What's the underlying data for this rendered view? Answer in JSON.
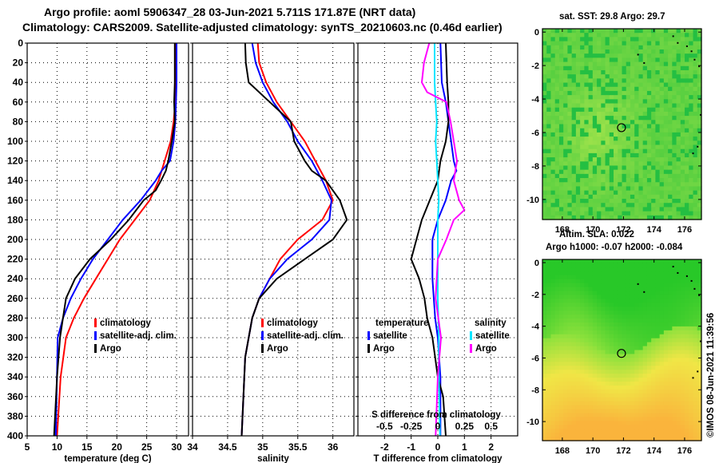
{
  "header": {
    "line1": "Argo profile: aoml 5906347_28 03-Jun-2021 5.711S 171.87E (NRT data)",
    "line2": "Climatology: CARS2009. Satellite-adjusted climatology: synTS_20210603.nc (0.46d earlier)"
  },
  "side_stamp": "©IMOS 08-Jun-2021 11:39:56",
  "colors": {
    "clim": "#ff0000",
    "sat": "#0000ff",
    "argo": "#000000",
    "sat_sal": "#00e5ff",
    "argo_sal": "#ff00ff"
  },
  "chart_data": [
    {
      "type": "line",
      "name": "temperature-panel",
      "xlabel": "temperature (deg C)",
      "ylabel": "",
      "xlim": [
        5,
        32
      ],
      "ylim": [
        400,
        0
      ],
      "xticks": [
        "5",
        "10",
        "15",
        "20",
        "25",
        "30"
      ],
      "yticks": [
        "0",
        "20",
        "40",
        "60",
        "80",
        "100",
        "120",
        "140",
        "160",
        "180",
        "200",
        "220",
        "240",
        "260",
        "280",
        "300",
        "320",
        "340",
        "360",
        "380",
        "400"
      ],
      "legend": [
        "climatology",
        "satellite-adj. clim.",
        "Argo"
      ],
      "series": [
        {
          "name": "climatology",
          "color": "#ff0000",
          "x": [
            29.9,
            29.85,
            29.8,
            29.5,
            29.0,
            28.0,
            27.0,
            25.5,
            23.0,
            20.5,
            18.5,
            16.5,
            14.5,
            12.8,
            11.5,
            10.6,
            10.0
          ],
          "y": [
            0,
            40,
            60,
            80,
            100,
            120,
            140,
            160,
            180,
            200,
            220,
            240,
            260,
            280,
            300,
            340,
            400
          ]
        },
        {
          "name": "satellite-adj. clim.",
          "color": "#0000ff",
          "x": [
            30.0,
            30.0,
            29.9,
            29.8,
            29.5,
            28.9,
            27.5,
            26.5,
            24.0,
            21.0,
            18.5,
            16.0,
            14.0,
            12.3,
            11.0,
            10.1,
            9.8
          ],
          "y": [
            0,
            40,
            60,
            80,
            100,
            120,
            130,
            140,
            160,
            180,
            200,
            220,
            240,
            260,
            280,
            300,
            400
          ]
        },
        {
          "name": "Argo",
          "color": "#000000",
          "x": [
            29.7,
            29.7,
            29.6,
            29.7,
            29.2,
            28.6,
            28.2,
            27.4,
            26.5,
            24.5,
            22.0,
            19.0,
            15.5,
            13.0,
            11.5,
            10.5,
            10.0,
            9.5
          ],
          "y": [
            0,
            40,
            60,
            80,
            100,
            120,
            130,
            140,
            150,
            160,
            180,
            200,
            220,
            240,
            260,
            300,
            340,
            400
          ]
        }
      ]
    },
    {
      "type": "line",
      "name": "salinity-panel",
      "xlabel": "salinity",
      "xlim": [
        34,
        36.3
      ],
      "ylim": [
        400,
        0
      ],
      "xticks": [
        "34",
        "34.5",
        "35",
        "35.5",
        "36"
      ],
      "legend": [
        "climatology",
        "satellite-adj. clim.",
        "Argo"
      ],
      "series": [
        {
          "name": "climatology",
          "color": "#ff0000",
          "x": [
            34.93,
            34.95,
            35.05,
            35.2,
            35.4,
            35.6,
            35.75,
            35.9,
            36.0,
            35.85,
            35.5,
            35.25,
            35.1,
            34.95,
            34.85,
            34.75,
            34.7
          ],
          "y": [
            0,
            20,
            40,
            60,
            80,
            100,
            120,
            140,
            160,
            180,
            200,
            220,
            240,
            260,
            280,
            320,
            400
          ]
        },
        {
          "name": "satellite-adj. clim.",
          "color": "#0000ff",
          "x": [
            34.85,
            34.9,
            35.0,
            35.15,
            35.35,
            35.5,
            35.7,
            35.85,
            35.98,
            35.95,
            35.7,
            35.35,
            35.1,
            34.95,
            34.85,
            34.75,
            34.7
          ],
          "y": [
            0,
            20,
            40,
            60,
            80,
            100,
            120,
            140,
            160,
            180,
            200,
            220,
            240,
            260,
            280,
            320,
            400
          ]
        },
        {
          "name": "Argo",
          "color": "#000000",
          "x": [
            34.75,
            34.76,
            34.8,
            35.1,
            35.4,
            35.45,
            35.6,
            35.7,
            35.9,
            36.1,
            36.2,
            36.0,
            35.6,
            35.2,
            34.95,
            34.85,
            34.75,
            34.7
          ],
          "y": [
            0,
            20,
            40,
            60,
            80,
            100,
            120,
            130,
            140,
            160,
            180,
            200,
            220,
            240,
            260,
            280,
            320,
            400
          ]
        }
      ]
    },
    {
      "type": "line",
      "name": "difference-panel",
      "xlabel": "T difference from climatology",
      "xlabel2": "S difference from climatology",
      "xlim": [
        -3,
        3
      ],
      "ylim": [
        400,
        0
      ],
      "xticks": [
        "-2",
        "-1",
        "0",
        "1",
        "2"
      ],
      "xticks2": [
        "-0.5",
        "-0.25",
        "0",
        "0.25",
        "0.5"
      ],
      "legend_groups": [
        "temperature",
        "salinity"
      ],
      "legend": [
        "satellite",
        "Argo",
        "satellite",
        "Argo"
      ],
      "series": [
        {
          "name": "temperature satellite",
          "color": "#0000ff",
          "x": [
            0.1,
            0.15,
            0.3,
            0.4,
            0.5,
            0.6,
            0.7,
            0.5,
            0.3,
            0.0,
            -0.2,
            -0.2,
            -0.1,
            0.0,
            0.1,
            0.1,
            0.1
          ],
          "y": [
            0,
            40,
            60,
            80,
            100,
            120,
            130,
            140,
            160,
            180,
            200,
            240,
            280,
            300,
            340,
            360,
            400
          ]
        },
        {
          "name": "temperature Argo",
          "color": "#000000",
          "x": [
            0.3,
            0.35,
            0.4,
            0.4,
            0.3,
            0.1,
            0.0,
            -0.3,
            -0.6,
            -0.8,
            -1.0,
            -0.7,
            -0.5,
            -0.4,
            -0.2,
            -0.1,
            0.0,
            0.2,
            0.3
          ],
          "y": [
            0,
            40,
            60,
            80,
            100,
            120,
            140,
            160,
            180,
            200,
            220,
            240,
            260,
            280,
            300,
            320,
            340,
            360,
            400
          ]
        },
        {
          "name": "salinity satellite",
          "color": "#00e5ff",
          "x": [
            -0.03,
            -0.03,
            -0.02,
            -0.01,
            -0.02,
            -0.01,
            0.0,
            0.01,
            0.0,
            0.0,
            0.0,
            0.01,
            0.01,
            0.02
          ],
          "y": [
            0,
            40,
            60,
            80,
            100,
            120,
            140,
            160,
            180,
            220,
            260,
            300,
            340,
            400
          ]
        },
        {
          "name": "salinity Argo",
          "color": "#ff00ff",
          "x": [
            -0.08,
            -0.13,
            -0.15,
            -0.1,
            0.08,
            0.12,
            0.15,
            0.18,
            0.15,
            0.2,
            0.25,
            0.15,
            0.08,
            0.0,
            -0.02,
            0.03,
            0.0,
            -0.02
          ],
          "y": [
            0,
            20,
            40,
            50,
            60,
            80,
            100,
            120,
            140,
            160,
            170,
            180,
            200,
            220,
            260,
            300,
            340,
            400
          ]
        }
      ]
    },
    {
      "type": "heatmap",
      "name": "sst-map",
      "title": "sat. SST: 29.8 Argo: 29.7",
      "xticks": [
        "168",
        "170",
        "172",
        "174",
        "176"
      ],
      "yticks": [
        "0",
        "-2",
        "-4",
        "-6",
        "-8",
        "-10"
      ],
      "xlim": [
        166.7,
        177.1
      ],
      "ylim": [
        -11.2,
        0.2
      ],
      "marker": {
        "lon": 171.87,
        "lat": -5.711
      }
    },
    {
      "type": "heatmap",
      "name": "sla-map",
      "title": "Altim. SLA: 0.022",
      "subtitle": "Argo h1000: -0.07 h2000: -0.084",
      "xticks": [
        "168",
        "170",
        "172",
        "174",
        "176"
      ],
      "yticks": [
        "0",
        "-2",
        "-4",
        "-6",
        "-8",
        "-10"
      ],
      "xlim": [
        166.7,
        177.1
      ],
      "ylim": [
        -11.2,
        0.2
      ],
      "marker": {
        "lon": 171.87,
        "lat": -5.711
      }
    }
  ]
}
